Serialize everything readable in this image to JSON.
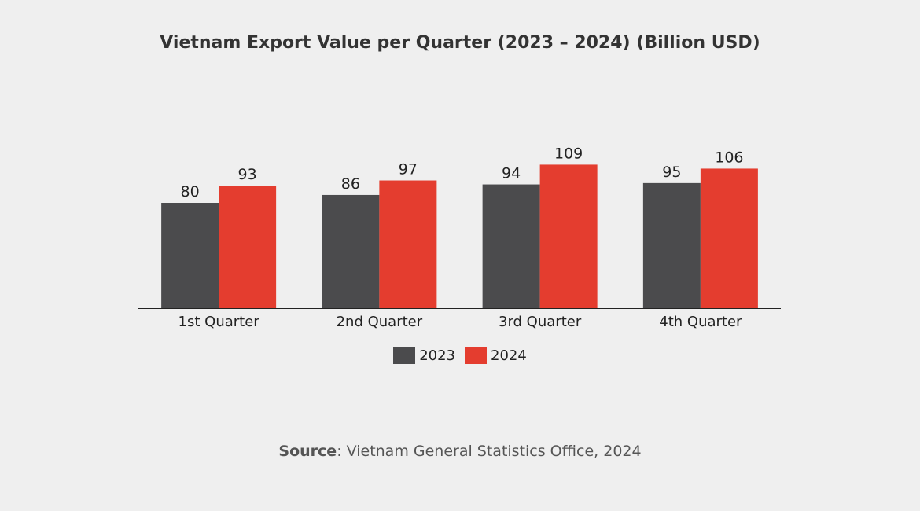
{
  "chart_data": {
    "type": "bar",
    "title": "Vietnam Export Value per Quarter (2023 – 2024) (Billion USD)",
    "categories": [
      "1st Quarter",
      "2nd Quarter",
      "3rd Quarter",
      "4th Quarter"
    ],
    "series": [
      {
        "name": "2023",
        "values": [
          80,
          86,
          94,
          95
        ],
        "color": "#4b4b4d"
      },
      {
        "name": "2024",
        "values": [
          93,
          97,
          109,
          106
        ],
        "color": "#e43d2f"
      }
    ],
    "xlabel": "",
    "ylabel": "",
    "ylim": [
      0,
      130
    ],
    "grid": false,
    "legend": "bottom",
    "data_labels": true
  },
  "source": {
    "label": "Source",
    "text": ": Vietnam General Statistics Office, 2024"
  }
}
